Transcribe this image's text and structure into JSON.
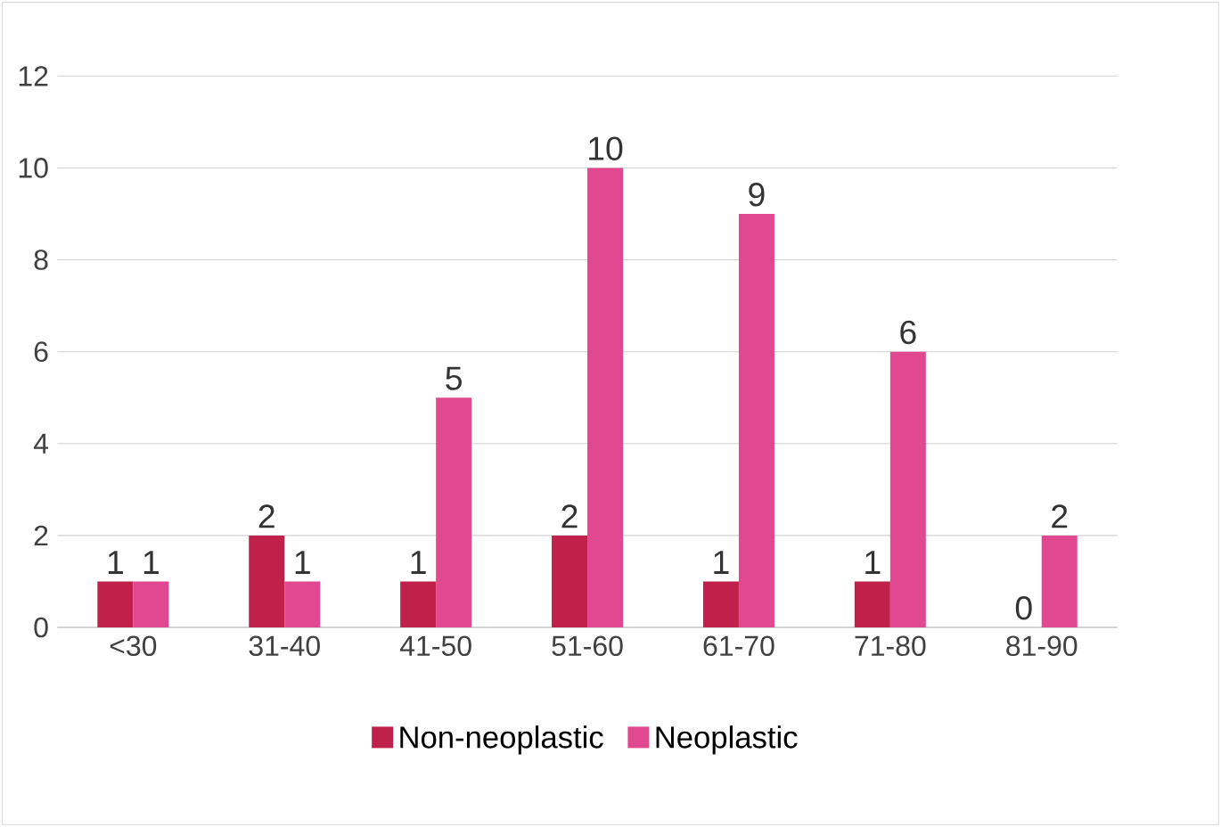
{
  "chart_data": {
    "type": "bar",
    "categories": [
      "<30",
      "31-40",
      "41-50",
      "51-60",
      "61-70",
      "71-80",
      "81-90"
    ],
    "series": [
      {
        "name": "Non-neoplastic",
        "color": "#c0214a",
        "values": [
          1,
          2,
          1,
          2,
          1,
          1,
          0
        ]
      },
      {
        "name": "Neoplastic",
        "color": "#e0488f",
        "values": [
          1,
          1,
          5,
          10,
          9,
          6,
          2
        ]
      }
    ],
    "ylim": [
      0,
      12
    ],
    "yticks": [
      0,
      2,
      4,
      6,
      8,
      10,
      12
    ],
    "grid": "y",
    "legend": "bottom",
    "data_labels": true
  }
}
